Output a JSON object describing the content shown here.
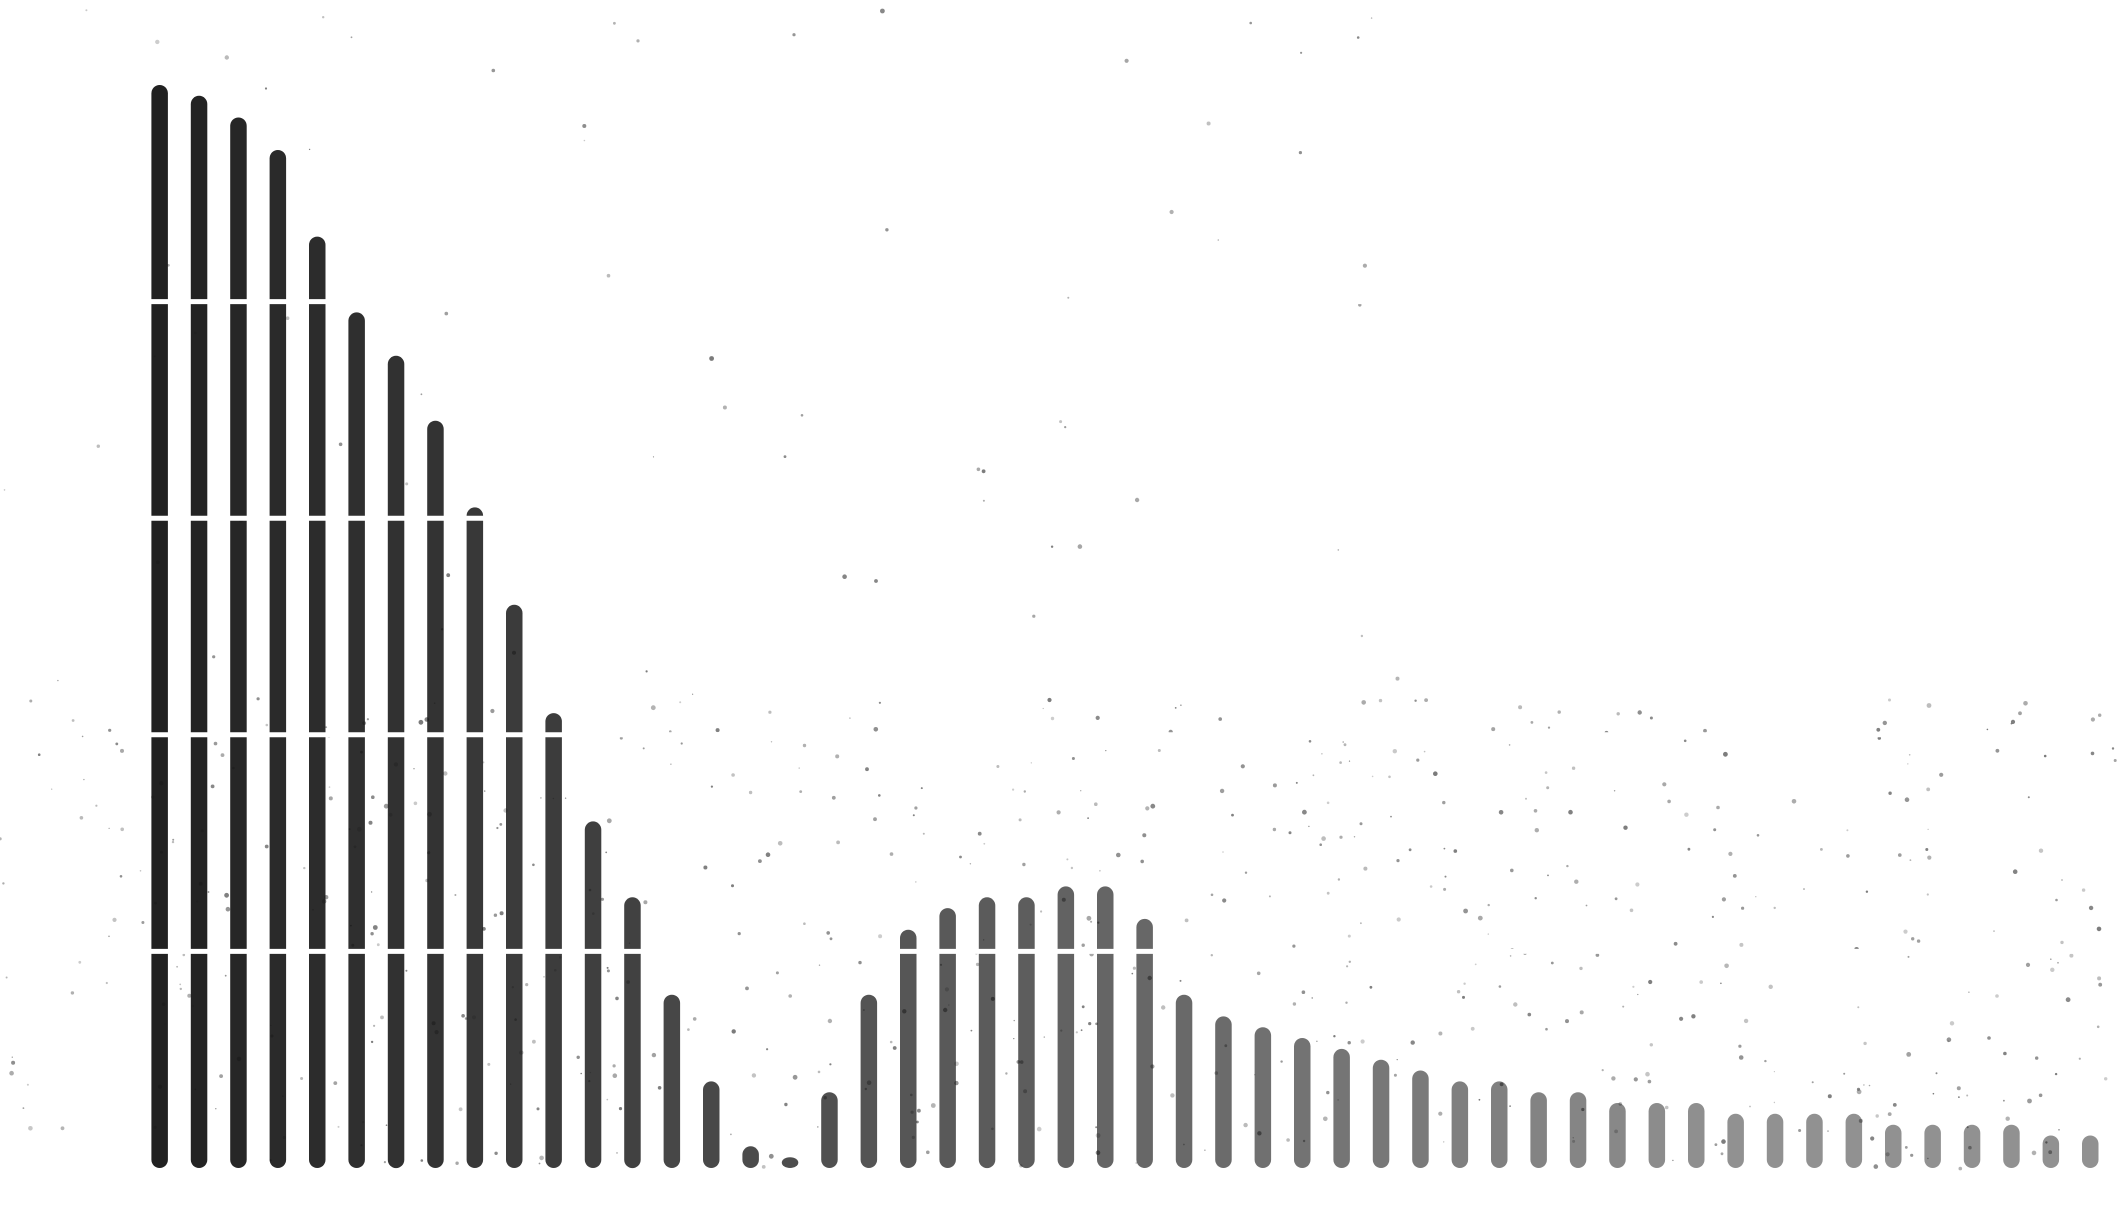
{
  "chart_data": {
    "type": "bar",
    "title": "",
    "xlabel": "",
    "ylabel": "",
    "ylim": [
      0,
      100
    ],
    "grid": true,
    "legend": "none",
    "bar_color": "#151515",
    "grid_color": "#ffffff",
    "values": [
      100,
      99,
      97,
      94,
      86,
      79,
      75,
      69,
      61,
      52,
      42,
      32,
      25,
      16,
      8,
      2,
      1,
      7,
      16,
      22,
      24,
      25,
      25,
      26,
      26,
      23,
      16,
      14,
      13,
      12,
      11,
      10,
      9,
      8,
      8,
      7,
      7,
      6,
      6,
      6,
      5,
      5,
      5,
      5,
      4,
      4,
      4,
      4,
      3,
      3
    ]
  }
}
